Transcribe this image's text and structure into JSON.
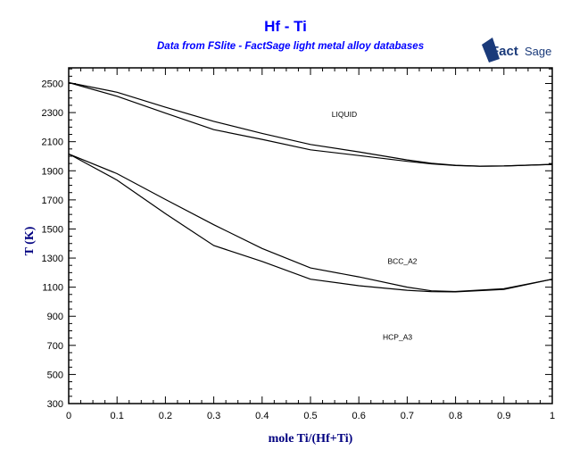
{
  "chart_data": {
    "type": "line",
    "title": "Hf - Ti",
    "subtitle": "Data from FSlite - FactSage light metal alloy databases",
    "logo_text": "FactSage",
    "xlabel": "mole Ti/(Hf+Ti)",
    "ylabel": "T (K)",
    "xlim": [
      0,
      1
    ],
    "ylim": [
      300,
      2600
    ],
    "x_ticks": [
      "0",
      "0.1",
      "0.2",
      "0.3",
      "0.4",
      "0.5",
      "0.6",
      "0.7",
      "0.8",
      "0.9",
      "1"
    ],
    "y_ticks": [
      "300",
      "500",
      "700",
      "900",
      "1100",
      "1300",
      "1500",
      "1700",
      "1900",
      "2100",
      "2300",
      "2500"
    ],
    "region_labels": [
      {
        "text": "LIQUID",
        "x": 0.57,
        "y": 2270
      },
      {
        "text": "BCC_A2",
        "x": 0.69,
        "y": 1260
      },
      {
        "text": "HCP_A3",
        "x": 0.68,
        "y": 740
      }
    ],
    "series": [
      {
        "name": "liquidus",
        "x": [
          0,
          0.1,
          0.2,
          0.3,
          0.4,
          0.5,
          0.6,
          0.7,
          0.75,
          0.8,
          0.85,
          0.9,
          1
        ],
        "y": [
          2506,
          2440,
          2337,
          2240,
          2157,
          2081,
          2030,
          1975,
          1952,
          1938,
          1932,
          1933,
          1944
        ]
      },
      {
        "name": "solidus",
        "x": [
          0,
          0.1,
          0.2,
          0.3,
          0.4,
          0.5,
          0.6,
          0.7,
          0.75,
          0.8,
          0.85,
          0.9,
          1
        ],
        "y": [
          2506,
          2412,
          2296,
          2183,
          2116,
          2044,
          2005,
          1965,
          1948,
          1936,
          1932,
          1933,
          1944
        ]
      },
      {
        "name": "bcc-hcp upper",
        "x": [
          0,
          0.1,
          0.2,
          0.3,
          0.4,
          0.5,
          0.6,
          0.7,
          0.75,
          0.8,
          0.9,
          1
        ],
        "y": [
          2016,
          1880,
          1703,
          1529,
          1366,
          1232,
          1171,
          1100,
          1075,
          1070,
          1090,
          1155
        ]
      },
      {
        "name": "bcc-hcp lower",
        "x": [
          0,
          0.1,
          0.2,
          0.3,
          0.4,
          0.5,
          0.6,
          0.7,
          0.75,
          0.8,
          0.9,
          1
        ],
        "y": [
          2016,
          1836,
          1605,
          1386,
          1277,
          1155,
          1110,
          1079,
          1069,
          1068,
          1085,
          1155
        ]
      }
    ]
  }
}
